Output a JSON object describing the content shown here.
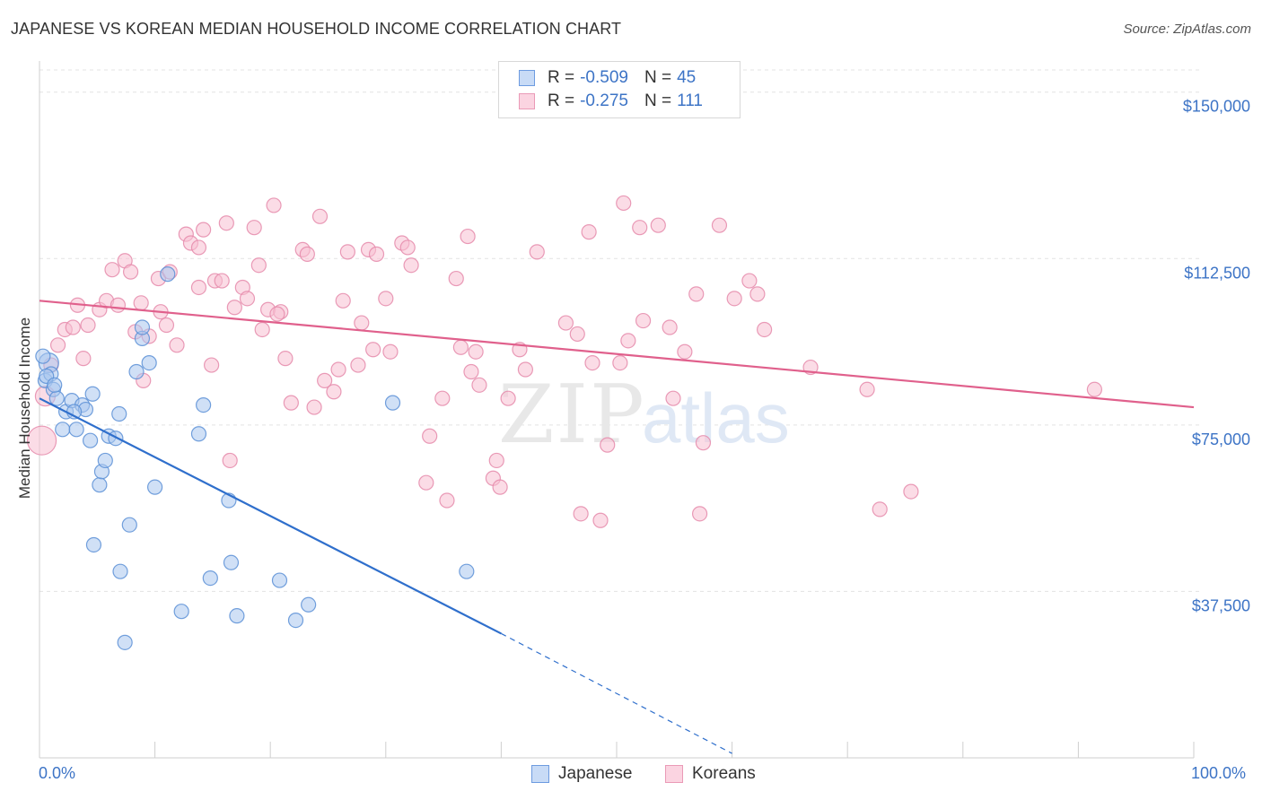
{
  "header": {
    "title": "JAPANESE VS KOREAN MEDIAN HOUSEHOLD INCOME CORRELATION CHART",
    "source": "Source: ZipAtlas.com"
  },
  "legend": {
    "rows": [
      {
        "r_label": "R =",
        "r_value": "-0.509",
        "n_label": "N =",
        "n_value": "45"
      },
      {
        "r_label": "R =",
        "r_value": "-0.275",
        "n_label": "N =",
        "n_value": "111"
      }
    ],
    "bottom": [
      "Japanese",
      "Koreans"
    ]
  },
  "watermark": {
    "part1": "ZIP",
    "part2": "atlas"
  },
  "colors": {
    "japanese_fill": "#a9c6ee",
    "japanese_stroke": "#5b8fd6",
    "japanese_line": "#2f6fcc",
    "korean_fill": "#f7c0d2",
    "korean_stroke": "#e58aaa",
    "korean_line": "#e0608c",
    "tick_text": "#3d74c6"
  },
  "chart_data": {
    "type": "scatter",
    "title": "JAPANESE VS KOREAN MEDIAN HOUSEHOLD INCOME CORRELATION CHART",
    "xlabel": "",
    "ylabel": "Median Household Income",
    "xlim": [
      0,
      100
    ],
    "ylim": [
      0,
      155000
    ],
    "x_tick_labels": [
      "0.0%",
      "100.0%"
    ],
    "y_ticks": [
      37500,
      75000,
      112500,
      150000
    ],
    "y_tick_labels": [
      "$37,500",
      "$75,000",
      "$112,500",
      "$150,000"
    ],
    "grid": true,
    "series": [
      {
        "name": "Japanese",
        "r": -0.509,
        "n": 45,
        "trend": {
          "x0": 0,
          "y0": 81000,
          "x1": 40,
          "y1": 28000,
          "dashed_to_x": 60,
          "dashed_to_y": 1000
        },
        "points": [
          [
            0.5,
            85000
          ],
          [
            0.8,
            89000
          ],
          [
            1.0,
            86500
          ],
          [
            1.2,
            83000
          ],
          [
            1.5,
            81000
          ],
          [
            2.0,
            74000
          ],
          [
            2.3,
            78000
          ],
          [
            2.8,
            80500
          ],
          [
            3.2,
            74000
          ],
          [
            3.7,
            79500
          ],
          [
            4.0,
            78500
          ],
          [
            4.4,
            71500
          ],
          [
            4.6,
            82000
          ],
          [
            5.2,
            61500
          ],
          [
            5.4,
            64500
          ],
          [
            5.7,
            67000
          ],
          [
            6.0,
            72500
          ],
          [
            6.6,
            72000
          ],
          [
            4.7,
            48000
          ],
          [
            6.9,
            77500
          ],
          [
            7.0,
            42000
          ],
          [
            7.4,
            26000
          ],
          [
            7.8,
            52500
          ],
          [
            8.4,
            87000
          ],
          [
            8.9,
            94500
          ],
          [
            8.9,
            97000
          ],
          [
            9.5,
            89000
          ],
          [
            10.0,
            61000
          ],
          [
            11.1,
            109000
          ],
          [
            12.3,
            33000
          ],
          [
            13.8,
            73000
          ],
          [
            14.2,
            79500
          ],
          [
            14.8,
            40500
          ],
          [
            16.4,
            58000
          ],
          [
            16.6,
            44000
          ],
          [
            17.1,
            32000
          ],
          [
            20.8,
            40000
          ],
          [
            22.2,
            31000
          ],
          [
            23.3,
            34500
          ],
          [
            30.6,
            80000
          ],
          [
            37.0,
            42000
          ],
          [
            0.3,
            90500
          ],
          [
            0.6,
            86000
          ],
          [
            1.3,
            84000
          ],
          [
            3.0,
            78000
          ]
        ]
      },
      {
        "name": "Koreans",
        "r": -0.275,
        "n": 111,
        "trend": {
          "x0": 0,
          "y0": 103000,
          "x1": 100,
          "y1": 79000
        },
        "points": [
          [
            0.2,
            71500
          ],
          [
            0.5,
            81500
          ],
          [
            1.0,
            88500
          ],
          [
            1.6,
            93000
          ],
          [
            2.2,
            96500
          ],
          [
            2.9,
            97000
          ],
          [
            3.3,
            102000
          ],
          [
            3.8,
            90000
          ],
          [
            4.2,
            97500
          ],
          [
            5.2,
            101000
          ],
          [
            5.8,
            103000
          ],
          [
            6.3,
            110000
          ],
          [
            6.8,
            102000
          ],
          [
            7.4,
            112000
          ],
          [
            7.9,
            109500
          ],
          [
            8.3,
            96000
          ],
          [
            8.8,
            102500
          ],
          [
            9.0,
            85000
          ],
          [
            9.5,
            95000
          ],
          [
            10.3,
            108000
          ],
          [
            10.5,
            100500
          ],
          [
            11.0,
            97500
          ],
          [
            11.3,
            109500
          ],
          [
            11.9,
            93000
          ],
          [
            12.7,
            118000
          ],
          [
            13.1,
            116000
          ],
          [
            13.8,
            106000
          ],
          [
            14.2,
            119000
          ],
          [
            14.9,
            88500
          ],
          [
            15.2,
            107500
          ],
          [
            15.8,
            107500
          ],
          [
            16.2,
            120500
          ],
          [
            16.5,
            67000
          ],
          [
            16.9,
            101500
          ],
          [
            17.6,
            106000
          ],
          [
            18.0,
            103500
          ],
          [
            18.6,
            119500
          ],
          [
            19.0,
            111000
          ],
          [
            19.3,
            96500
          ],
          [
            19.8,
            101000
          ],
          [
            20.3,
            124500
          ],
          [
            20.9,
            100500
          ],
          [
            21.3,
            90000
          ],
          [
            21.8,
            80000
          ],
          [
            22.8,
            114500
          ],
          [
            23.2,
            113500
          ],
          [
            23.8,
            79000
          ],
          [
            24.3,
            122000
          ],
          [
            24.7,
            85000
          ],
          [
            25.5,
            82500
          ],
          [
            25.9,
            87500
          ],
          [
            26.3,
            103000
          ],
          [
            26.7,
            114000
          ],
          [
            27.6,
            88500
          ],
          [
            27.9,
            98000
          ],
          [
            28.5,
            114500
          ],
          [
            28.9,
            92000
          ],
          [
            29.2,
            113500
          ],
          [
            30.0,
            103500
          ],
          [
            30.4,
            91500
          ],
          [
            31.4,
            116000
          ],
          [
            31.9,
            115000
          ],
          [
            32.2,
            111000
          ],
          [
            33.5,
            62000
          ],
          [
            33.8,
            72500
          ],
          [
            34.9,
            81000
          ],
          [
            35.3,
            58000
          ],
          [
            36.5,
            92500
          ],
          [
            37.1,
            117500
          ],
          [
            37.4,
            87000
          ],
          [
            36.1,
            108000
          ],
          [
            37.8,
            91500
          ],
          [
            38.1,
            84000
          ],
          [
            39.3,
            63000
          ],
          [
            39.6,
            67000
          ],
          [
            39.9,
            61000
          ],
          [
            40.6,
            81000
          ],
          [
            41.6,
            92000
          ],
          [
            42.1,
            87500
          ],
          [
            43.1,
            114000
          ],
          [
            45.6,
            98000
          ],
          [
            46.6,
            95500
          ],
          [
            46.9,
            55000
          ],
          [
            47.6,
            118500
          ],
          [
            47.9,
            89000
          ],
          [
            48.6,
            53500
          ],
          [
            49.2,
            70500
          ],
          [
            50.3,
            89000
          ],
          [
            50.6,
            125000
          ],
          [
            51.0,
            94000
          ],
          [
            52.0,
            119500
          ],
          [
            52.3,
            98500
          ],
          [
            53.6,
            120000
          ],
          [
            54.6,
            97000
          ],
          [
            54.9,
            81000
          ],
          [
            55.9,
            91500
          ],
          [
            56.9,
            104500
          ],
          [
            57.2,
            55000
          ],
          [
            57.5,
            71000
          ],
          [
            58.9,
            120000
          ],
          [
            60.2,
            103500
          ],
          [
            61.5,
            107500
          ],
          [
            62.2,
            104500
          ],
          [
            62.8,
            96500
          ],
          [
            66.8,
            88000
          ],
          [
            71.7,
            83000
          ],
          [
            72.8,
            56000
          ],
          [
            75.5,
            60000
          ],
          [
            91.4,
            83000
          ],
          [
            13.8,
            115000
          ],
          [
            20.6,
            100000
          ]
        ]
      }
    ]
  }
}
